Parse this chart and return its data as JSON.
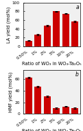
{
  "categories": [
    "0.50%",
    "1%",
    "2%",
    "5%",
    "10%",
    "20%"
  ],
  "la_yield": [
    13,
    27,
    47,
    80,
    75,
    57
  ],
  "la_errors": [
    1.2,
    1.2,
    1.2,
    1.2,
    1.2,
    1.2
  ],
  "hmf_yield": [
    62,
    47,
    30,
    10,
    13,
    10
  ],
  "hmf_errors": [
    1.2,
    1.2,
    1.2,
    0.8,
    0.8,
    0.8
  ],
  "bar_color": "#cc0000",
  "error_color": "black",
  "ylabel_top": "LA yield (mol%)",
  "ylabel_bottom": "HMF yield (mol%)",
  "xlabel": "Ratio of WO₃ in WO₃-Ta₂O₅",
  "label_a": "a",
  "label_b": "b",
  "la_ylim": [
    0,
    100
  ],
  "hmf_ylim": [
    0,
    75
  ],
  "la_yticks": [
    0,
    20,
    40,
    60,
    80,
    100
  ],
  "hmf_yticks": [
    0,
    20,
    40,
    60
  ],
  "background_color": "#ffffff",
  "axes_facecolor": "#f0f0f0",
  "tick_fontsize": 4.2,
  "label_fontsize": 4.8,
  "panel_label_fontsize": 5.5
}
